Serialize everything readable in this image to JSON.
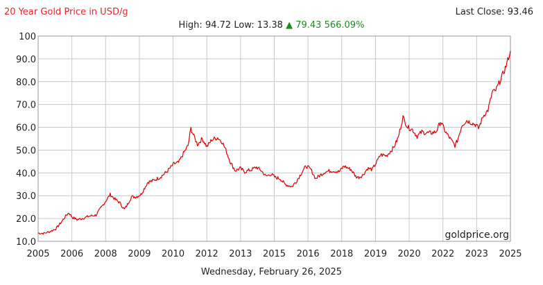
{
  "header": {
    "title": "20 Year Gold Price in USD/g",
    "last_close_label": "Last Close:",
    "last_close_value": "93.46",
    "high_label": "High:",
    "high_value": "94.72",
    "low_label": "Low:",
    "low_value": "13.38",
    "change_arrow": "▲",
    "change_value": "79.43",
    "change_percent": "566.09%"
  },
  "footer": {
    "date": "Wednesday, February 26, 2025"
  },
  "watermark": "goldprice.org",
  "colors": {
    "line": "#dd0000",
    "title": "#e8262a",
    "up": "#1f8a1f",
    "grid": "#c8c8c8"
  },
  "chart_data": {
    "type": "line",
    "title": "20 Year Gold Price in USD/g",
    "xlabel": "",
    "ylabel": "",
    "xlim": [
      2005.15,
      2025.15
    ],
    "ylim": [
      10,
      100
    ],
    "grid": true,
    "x_ticks": [
      "2005",
      "2006",
      "2008",
      "2009",
      "2010",
      "2012",
      "2013",
      "2015",
      "2016",
      "2018",
      "2019",
      "2020",
      "2022",
      "2023",
      "2025"
    ],
    "y_ticks": [
      "10.0",
      "20.0",
      "30.0",
      "40.0",
      "50.0",
      "60.0",
      "70.0",
      "80.0",
      "90.0",
      "100"
    ],
    "series": [
      {
        "x": [
          2005.15,
          2005.4,
          2005.65,
          2005.9,
          2006.1,
          2006.35,
          2006.45,
          2006.6,
          2006.8,
          2007.0,
          2007.3,
          2007.6,
          2007.9,
          2008.2,
          2008.4,
          2008.6,
          2008.8,
          2008.9,
          2009.1,
          2009.3,
          2009.5,
          2009.8,
          2010.0,
          2010.3,
          2010.6,
          2010.9,
          2011.1,
          2011.3,
          2011.5,
          2011.62,
          2011.75,
          2011.9,
          2012.1,
          2012.3,
          2012.5,
          2012.75,
          2012.95,
          2013.1,
          2013.3,
          2013.5,
          2013.7,
          2013.9,
          2014.2,
          2014.4,
          2014.6,
          2014.8,
          2015.0,
          2015.2,
          2015.4,
          2015.6,
          2015.9,
          2016.1,
          2016.3,
          2016.5,
          2016.7,
          2016.9,
          2017.1,
          2017.3,
          2017.6,
          2017.9,
          2018.1,
          2018.4,
          2018.6,
          2018.7,
          2018.9,
          2019.1,
          2019.3,
          2019.5,
          2019.65,
          2019.9,
          2020.2,
          2020.4,
          2020.6,
          2020.8,
          2021.0,
          2021.2,
          2021.4,
          2021.6,
          2021.8,
          2022.0,
          2022.2,
          2022.4,
          2022.6,
          2022.8,
          2022.9,
          2023.1,
          2023.3,
          2023.5,
          2023.7,
          2023.8,
          2024.0,
          2024.2,
          2024.4,
          2024.5,
          2024.7,
          2024.9,
          2025.0,
          2025.15
        ],
        "y": [
          13.6,
          13.5,
          14.3,
          15.5,
          18.0,
          21.5,
          22.5,
          20.5,
          19.5,
          20.0,
          21.0,
          21.5,
          26.0,
          30.5,
          28.5,
          27.0,
          24.0,
          25.5,
          29.5,
          29.5,
          30.5,
          36.0,
          36.5,
          38.0,
          40.5,
          44.0,
          44.5,
          48.5,
          52.0,
          59.5,
          56.0,
          52.5,
          55.0,
          51.5,
          54.5,
          55.5,
          53.5,
          50.0,
          44.5,
          41.0,
          42.0,
          40.5,
          41.5,
          42.5,
          41.0,
          38.5,
          39.5,
          38.0,
          37.5,
          35.0,
          34.0,
          36.5,
          40.0,
          43.0,
          41.5,
          37.5,
          39.0,
          40.5,
          41.0,
          40.5,
          43.0,
          41.5,
          38.5,
          38.0,
          39.0,
          42.0,
          41.5,
          45.0,
          48.0,
          47.5,
          51.0,
          55.5,
          64.5,
          60.0,
          59.0,
          56.0,
          58.0,
          57.5,
          57.5,
          58.0,
          62.5,
          58.0,
          55.0,
          52.0,
          54.0,
          61.0,
          63.0,
          62.0,
          61.0,
          59.5,
          65.0,
          67.5,
          76.0,
          75.5,
          80.0,
          85.0,
          88.0,
          93.5
        ]
      }
    ]
  }
}
